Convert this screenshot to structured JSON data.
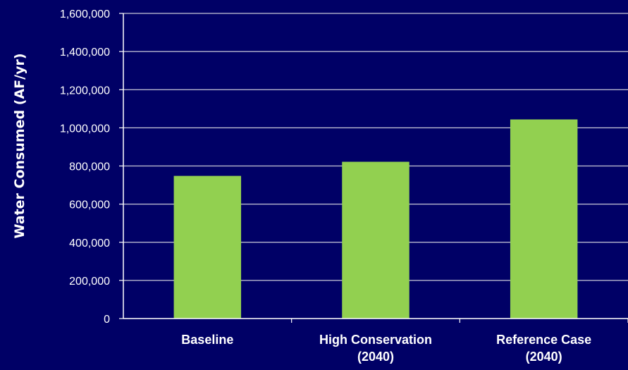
{
  "chart_data": {
    "type": "bar",
    "title": "",
    "xlabel": "",
    "ylabel": "Water Consumed (AF/yr)",
    "ylim": [
      0,
      1600000
    ],
    "yticks": [
      0,
      200000,
      400000,
      600000,
      800000,
      1000000,
      1200000,
      1400000,
      1600000
    ],
    "ytick_labels": [
      "0",
      "200,000",
      "400,000",
      "600,000",
      "800,000",
      "1,000,000",
      "1,200,000",
      "1,400,000",
      "1,600,000"
    ],
    "categories": [
      [
        "Baseline"
      ],
      [
        "High Conservation",
        "(2040)"
      ],
      [
        "Reference Case",
        "(2040)"
      ]
    ],
    "values": [
      748000,
      822000,
      1044000
    ],
    "grid": true,
    "legend": "none",
    "colors": {
      "background": "#000066",
      "bar": "#92d050",
      "gridline": "#c8c8d8",
      "axis": "#ffffff",
      "text": "#ffffff"
    }
  }
}
